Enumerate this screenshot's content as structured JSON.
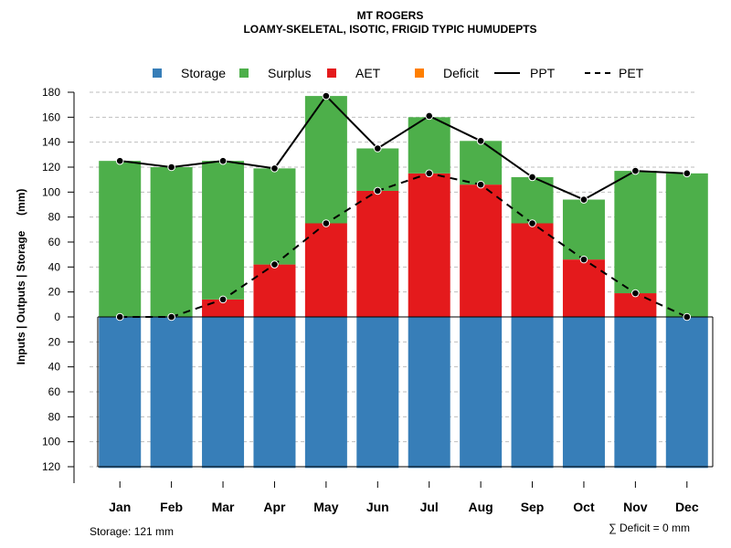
{
  "colors": {
    "storage": "#377EB8",
    "surplus": "#4DAF4A",
    "aet": "#E41A1C",
    "deficit": "#FF7F00",
    "line": "#000000",
    "grid": "#BEBEBE"
  },
  "chart_data": {
    "type": "bar",
    "title": "MT ROGERS",
    "subtitle": "LOAMY-SKELETAL, ISOTIC, FRIGID TYPIC HUMUDEPTS",
    "ylabel": "Inputs | Outputs | Storage     (mm)",
    "ylim": [
      -120,
      180
    ],
    "yticks": [
      180,
      160,
      140,
      120,
      100,
      80,
      60,
      40,
      20,
      0,
      -20,
      -40,
      -60,
      -80,
      -100,
      -120
    ],
    "ytick_labels": [
      "180",
      "160",
      "140",
      "120",
      "100",
      "80",
      "60",
      "40",
      "20",
      "0",
      "20",
      "40",
      "60",
      "80",
      "100",
      "120"
    ],
    "categories": [
      "Jan",
      "Feb",
      "Mar",
      "Apr",
      "May",
      "Jun",
      "Jul",
      "Aug",
      "Sep",
      "Oct",
      "Nov",
      "Dec"
    ],
    "series": [
      {
        "name": "Storage",
        "kind": "bar",
        "values": [
          121,
          121,
          121,
          121,
          121,
          121,
          121,
          121,
          121,
          121,
          121,
          121
        ]
      },
      {
        "name": "Surplus",
        "kind": "bar",
        "values": [
          125,
          120,
          111,
          77,
          102,
          34,
          45,
          35,
          37,
          48,
          98,
          115
        ]
      },
      {
        "name": "AET",
        "kind": "bar",
        "values": [
          0,
          0,
          14,
          42,
          75,
          101,
          115,
          106,
          75,
          46,
          19,
          0
        ]
      },
      {
        "name": "Deficit",
        "kind": "bar",
        "values": [
          0,
          0,
          0,
          0,
          0,
          0,
          0,
          0,
          0,
          0,
          0,
          0
        ]
      },
      {
        "name": "PPT",
        "kind": "line",
        "dash": "solid",
        "values": [
          125,
          120,
          125,
          119,
          177,
          135,
          161,
          141,
          112,
          94,
          117,
          115
        ]
      },
      {
        "name": "PET",
        "kind": "line",
        "dash": "dashed",
        "values": [
          0,
          0,
          14,
          42,
          75,
          101,
          115,
          106,
          75,
          46,
          19,
          0
        ]
      }
    ],
    "legend": [
      "Storage",
      "Surplus",
      "AET",
      "Deficit",
      "PPT",
      "PET"
    ],
    "legend_position": "top",
    "grid": true,
    "storage_note": "Storage: 121 mm",
    "deficit_note": "∑ Deficit = 0 mm"
  }
}
